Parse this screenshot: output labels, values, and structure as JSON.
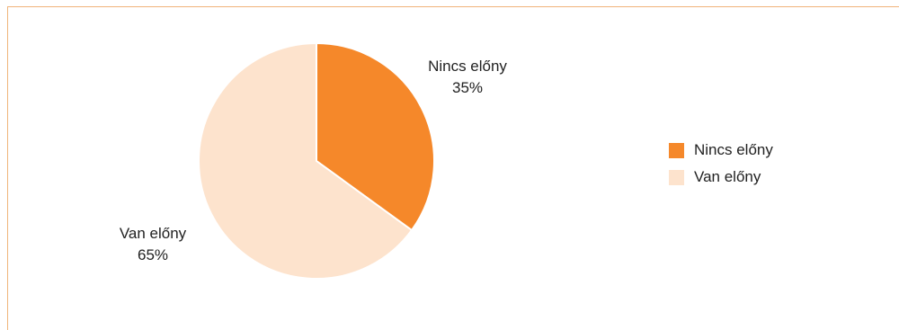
{
  "chart_data": {
    "type": "pie",
    "title": "",
    "categories": [
      "Nincs előny",
      "Van előny"
    ],
    "values": [
      35,
      65
    ],
    "value_labels": [
      "35%",
      "65%"
    ],
    "colors": [
      "#f5882a",
      "#fde3cd"
    ],
    "legend_position": "right",
    "start_angle": "12 o'clock, clockwise"
  }
}
